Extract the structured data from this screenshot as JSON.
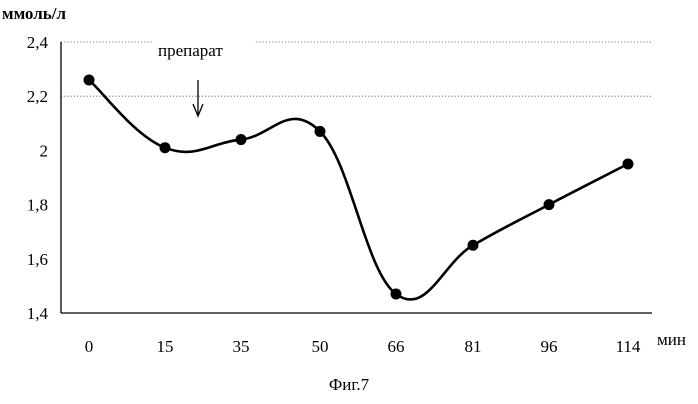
{
  "chart_data": {
    "type": "line",
    "ylabel": "ммоль/л",
    "xlabel": "мин",
    "caption": "Фиг.7",
    "annotation": {
      "text": "препарат",
      "x_between": [
        "15",
        "35"
      ]
    },
    "categories": [
      "0",
      "15",
      "35",
      "50",
      "66",
      "81",
      "96",
      "114"
    ],
    "values": [
      2.26,
      2.01,
      2.04,
      2.07,
      1.47,
      1.65,
      1.8,
      1.95
    ],
    "ylim": [
      1.4,
      2.4
    ],
    "yticks": [
      "1,4",
      "1,6",
      "1,8",
      "2",
      "2,2",
      "2,4"
    ],
    "gridlines": [
      2.2,
      2.4
    ],
    "grid_style": "dotted",
    "marker": "filled-circle",
    "line_color": "#000000",
    "smoothed": true
  }
}
